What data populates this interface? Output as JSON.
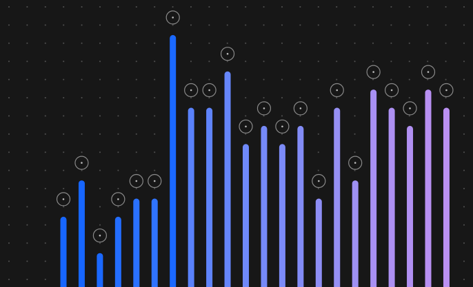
{
  "chart_data": {
    "type": "bar",
    "categories": [
      null,
      null,
      null,
      null,
      null,
      null,
      null,
      null,
      null,
      null,
      null,
      null,
      null,
      null,
      null,
      null,
      null,
      null,
      null,
      null,
      null,
      null
    ],
    "values": [
      4,
      6,
      2,
      4,
      5,
      5,
      14,
      10,
      10,
      12,
      8,
      9,
      8,
      9,
      5,
      10,
      6,
      11,
      10,
      9,
      11,
      10
    ],
    "colors": [
      "#1766ff",
      "#1766ff",
      "#1a68ff",
      "#236dff",
      "#2a71ff",
      "#2f73ff",
      "#1b69ff",
      "#5a82fb",
      "#5f84fb",
      "#6686fa",
      "#6f89f9",
      "#7589f8",
      "#7c8bf7",
      "#838cf6",
      "#8e8ef5",
      "#9690f4",
      "#9e90f3",
      "#a890f3",
      "#ad90f2",
      "#b190f2",
      "#b890f2",
      "#bb90f2"
    ],
    "ylim": [
      0,
      16
    ],
    "grid": true
  }
}
